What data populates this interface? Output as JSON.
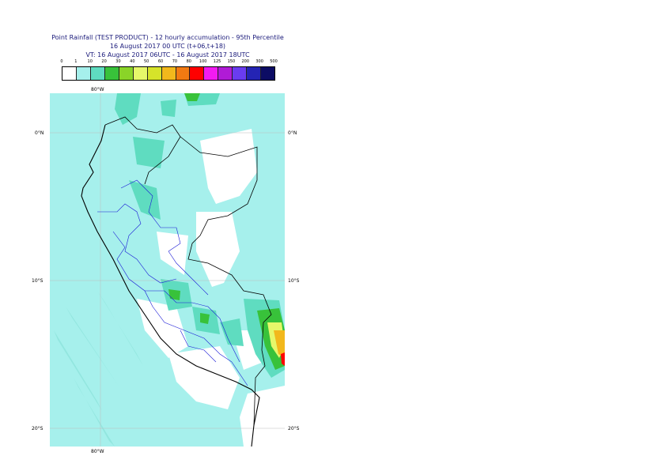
{
  "title": {
    "line1": "Point Rainfall (TEST PRODUCT) - 12 hourly accumulation - 95th Percentile",
    "line2": "16 August 2017 00 UTC (t+06,t+18)",
    "line3": "VT: 16 August 2017 06UTC - 16 August 2017 18UTC"
  },
  "legend": {
    "ticks": [
      "0",
      "1",
      "10",
      "20",
      "30",
      "40",
      "50",
      "60",
      "70",
      "80",
      "100",
      "125",
      "150",
      "200",
      "300",
      "500"
    ],
    "colors": [
      "#ffffff",
      "#a6f0ec",
      "#5fdcc0",
      "#38c23a",
      "#8ad428",
      "#e6f76a",
      "#d6e32a",
      "#f2b81c",
      "#f27a12",
      "#ff0000",
      "#f21bf2",
      "#b01bd6",
      "#6a3cf0",
      "#2424b4",
      "#0c0c64"
    ]
  },
  "axes": {
    "lon_label_top": "80°W",
    "lon_label_bottom": "80°W",
    "lat_labels_left": [
      "0°N",
      "10°S",
      "20°S"
    ],
    "lat_labels_right": [
      "0°N",
      "10°S",
      "20°S"
    ]
  },
  "map": {
    "ocean_color": "#a6f0ec",
    "land_dry_color": "#ffffff",
    "coast_color": "#000000",
    "border_color": "#000000",
    "region_color": "#1a1ad6"
  }
}
